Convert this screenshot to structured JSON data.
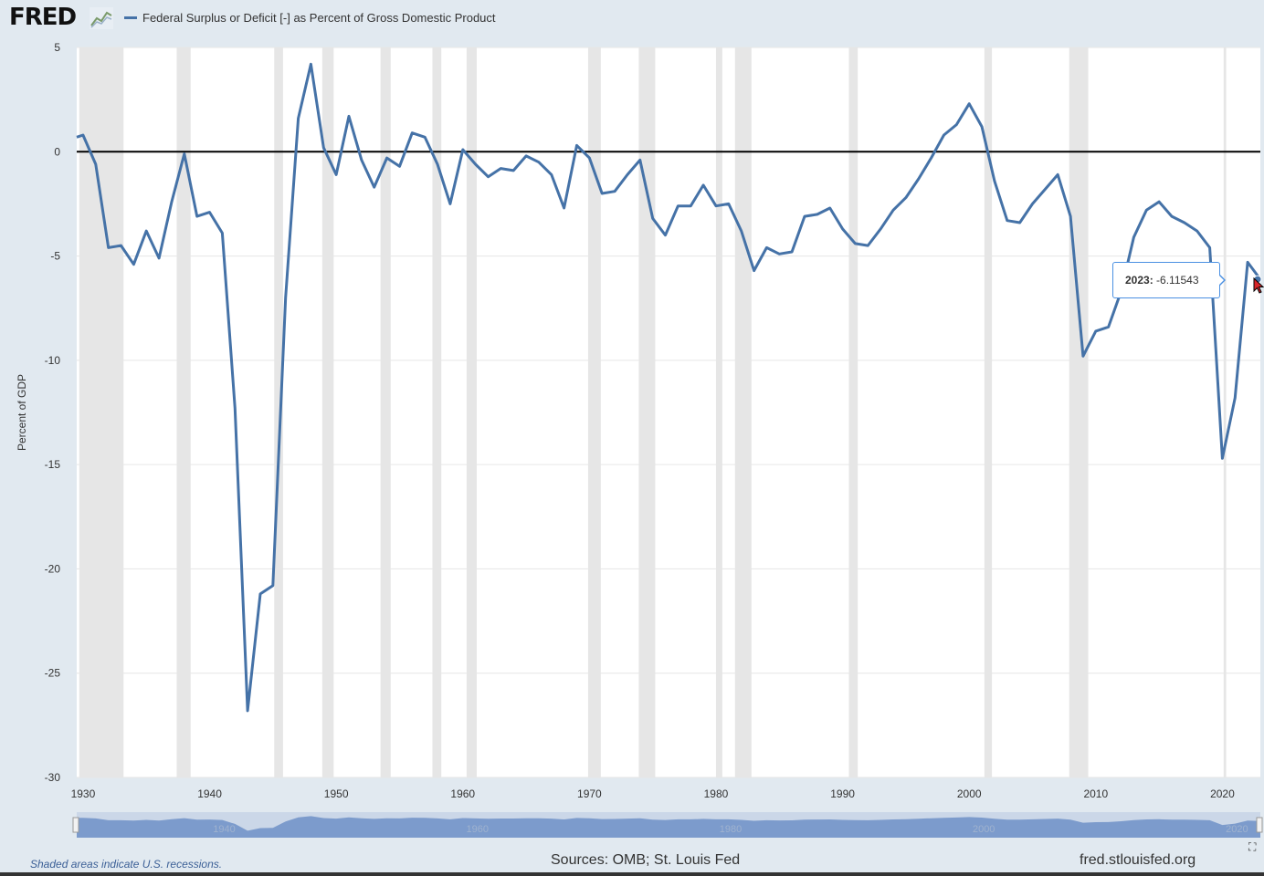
{
  "header": {
    "logo_text": "FRED",
    "logo_icon": "line-chart-icon",
    "series_title": "Federal Surplus or Deficit [-] as Percent of Gross Domestic Product"
  },
  "tooltip": {
    "label": "2023:",
    "value": "-6.11543"
  },
  "footer": {
    "note": "Shaded areas indicate U.S. recessions.",
    "sources": "Sources: OMB; St. Louis Fed",
    "site": "fred.stlouisfed.org"
  },
  "colors": {
    "line": "#4572a7",
    "recession": "#e6e6e6",
    "background": "#e1e9f0",
    "navigator": "#6f90c7"
  },
  "chart_data": {
    "type": "line",
    "ylabel": "Percent of GDP",
    "xlim": [
      1929.5,
      2023
    ],
    "ylim": [
      -30,
      5
    ],
    "yticks": [
      5,
      0,
      -5,
      -10,
      -15,
      -20,
      -25,
      -30
    ],
    "xticks": [
      1930,
      1940,
      1950,
      1960,
      1970,
      1980,
      1990,
      2000,
      2010,
      2020
    ],
    "navigator_labels": [
      1940,
      1960,
      1980,
      2000,
      2020
    ],
    "recessions": [
      [
        1929.7,
        1933.2
      ],
      [
        1937.4,
        1938.5
      ],
      [
        1945.1,
        1945.8
      ],
      [
        1948.9,
        1949.8
      ],
      [
        1953.5,
        1954.3
      ],
      [
        1957.6,
        1958.3
      ],
      [
        1960.3,
        1961.1
      ],
      [
        1969.9,
        1970.9
      ],
      [
        1973.9,
        1975.2
      ],
      [
        1980.0,
        1980.5
      ],
      [
        1981.5,
        1982.8
      ],
      [
        1990.5,
        1991.2
      ],
      [
        2001.2,
        2001.8
      ],
      [
        2007.9,
        2009.4
      ],
      [
        2020.1,
        2020.3
      ]
    ],
    "series": [
      {
        "years": [
          1929,
          1930,
          1931,
          1932,
          1933,
          1934,
          1935,
          1936,
          1937,
          1938,
          1939,
          1940,
          1941,
          1942,
          1943,
          1944,
          1945,
          1946,
          1947,
          1948,
          1949,
          1950,
          1951,
          1952,
          1953,
          1954,
          1955,
          1956,
          1957,
          1958,
          1959,
          1960,
          1961,
          1962,
          1963,
          1964,
          1965,
          1966,
          1967,
          1968,
          1969,
          1970,
          1971,
          1972,
          1973,
          1974,
          1975,
          1976,
          1977,
          1978,
          1979,
          1980,
          1981,
          1982,
          1983,
          1984,
          1985,
          1986,
          1987,
          1988,
          1989,
          1990,
          1991,
          1992,
          1993,
          1994,
          1995,
          1996,
          1997,
          1998,
          1999,
          2000,
          2001,
          2002,
          2003,
          2004,
          2005,
          2006,
          2007,
          2008,
          2009,
          2010,
          2011,
          2012,
          2013,
          2014,
          2015,
          2016,
          2017,
          2018,
          2019,
          2020,
          2021,
          2022,
          2023
        ],
        "values": [
          0.7,
          0.8,
          -0.6,
          -4.6,
          -4.5,
          -5.4,
          -3.8,
          -5.1,
          -2.4,
          -0.1,
          -3.1,
          -2.9,
          -3.9,
          -12.3,
          -26.8,
          -21.2,
          -20.8,
          -7.0,
          1.6,
          4.2,
          0.2,
          -1.1,
          1.7,
          -0.4,
          -1.7,
          -0.3,
          -0.7,
          0.9,
          0.7,
          -0.6,
          -2.5,
          0.1,
          -0.6,
          -1.2,
          -0.8,
          -0.9,
          -0.2,
          -0.5,
          -1.1,
          -2.7,
          0.3,
          -0.3,
          -2.0,
          -1.9,
          -1.1,
          -0.4,
          -3.2,
          -4.0,
          -2.6,
          -2.6,
          -1.6,
          -2.6,
          -2.5,
          -3.8,
          -5.7,
          -4.6,
          -4.9,
          -4.8,
          -3.1,
          -3.0,
          -2.7,
          -3.7,
          -4.4,
          -4.5,
          -3.7,
          -2.8,
          -2.2,
          -1.3,
          -0.3,
          0.8,
          1.3,
          2.3,
          1.2,
          -1.4,
          -3.3,
          -3.4,
          -2.5,
          -1.8,
          -1.1,
          -3.1,
          -9.8,
          -8.6,
          -8.4,
          -6.7,
          -4.1,
          -2.8,
          -2.4,
          -3.1,
          -3.4,
          -3.8,
          -4.6,
          -14.7,
          -11.8,
          -5.3,
          -6.11543
        ]
      }
    ]
  }
}
